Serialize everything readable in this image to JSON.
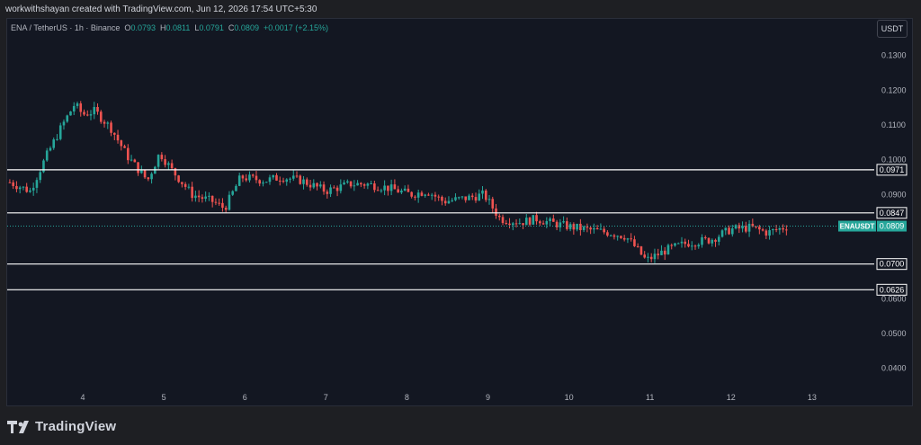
{
  "header": {
    "attribution": "workwithshayan created with TradingView.com, Jun 12, 2026 17:54 UTC+5:30"
  },
  "legend": {
    "symbol": "ENA / TetherUS · 1h · Binance",
    "o_label": "O",
    "o": "0.0793",
    "h_label": "H",
    "h": "0.0811",
    "l_label": "L",
    "l": "0.0791",
    "c_label": "C",
    "c": "0.0809",
    "change": "+0.0017 (+2.15%)"
  },
  "currency_button": "USDT",
  "brand": "TradingView",
  "colors": {
    "up": "#26a69a",
    "down": "#ef5350",
    "level": "#ffffff",
    "background": "#131722"
  },
  "chart_data": {
    "type": "candlestick",
    "symbol": "ENAUSDT",
    "interval": "1h",
    "x_ticks": [
      "4",
      "5",
      "6",
      "7",
      "8",
      "9",
      "10",
      "11",
      "12",
      "13"
    ],
    "y_ticks": [
      "0.1300",
      "0.1200",
      "0.1100",
      "0.1000",
      "0.0900",
      "0.0600",
      "0.0500",
      "0.0400"
    ],
    "ylim": [
      0.0345,
      0.1405
    ],
    "grid": false,
    "horizontal_levels": [
      {
        "value": 0.0971,
        "label": "0.0971"
      },
      {
        "value": 0.0847,
        "label": "0.0847"
      },
      {
        "value": 0.07,
        "label": "0.0700"
      },
      {
        "value": 0.0626,
        "label": "0.0626"
      }
    ],
    "last_price": {
      "name": "ENAUSDT",
      "value": 0.0809,
      "label": "0.0809"
    },
    "anchors": [
      [
        3.1,
        0.0935
      ],
      [
        3.35,
        0.091
      ],
      [
        3.55,
        0.101
      ],
      [
        3.75,
        0.11
      ],
      [
        3.9,
        0.116
      ],
      [
        4.0,
        0.113
      ],
      [
        4.15,
        0.114
      ],
      [
        4.35,
        0.109
      ],
      [
        4.55,
        0.101
      ],
      [
        4.8,
        0.094
      ],
      [
        4.95,
        0.102
      ],
      [
        5.1,
        0.097
      ],
      [
        5.35,
        0.09
      ],
      [
        5.6,
        0.088
      ],
      [
        5.75,
        0.086
      ],
      [
        5.95,
        0.095
      ],
      [
        6.25,
        0.094
      ],
      [
        6.45,
        0.095
      ],
      [
        6.7,
        0.094
      ],
      [
        7.0,
        0.091
      ],
      [
        7.3,
        0.093
      ],
      [
        7.5,
        0.093
      ],
      [
        7.75,
        0.092
      ],
      [
        8.05,
        0.09
      ],
      [
        8.25,
        0.091
      ],
      [
        8.45,
        0.088
      ],
      [
        8.75,
        0.089
      ],
      [
        8.95,
        0.09
      ],
      [
        9.15,
        0.083
      ],
      [
        9.4,
        0.082
      ],
      [
        9.6,
        0.083
      ],
      [
        9.75,
        0.082
      ],
      [
        9.95,
        0.081
      ],
      [
        10.2,
        0.08
      ],
      [
        10.5,
        0.079
      ],
      [
        10.7,
        0.078
      ],
      [
        10.85,
        0.074
      ],
      [
        10.95,
        0.071
      ],
      [
        11.2,
        0.074
      ],
      [
        11.45,
        0.076
      ],
      [
        11.75,
        0.077
      ],
      [
        12.0,
        0.08
      ],
      [
        12.25,
        0.0805
      ],
      [
        12.45,
        0.079
      ],
      [
        12.7,
        0.0809
      ]
    ]
  }
}
